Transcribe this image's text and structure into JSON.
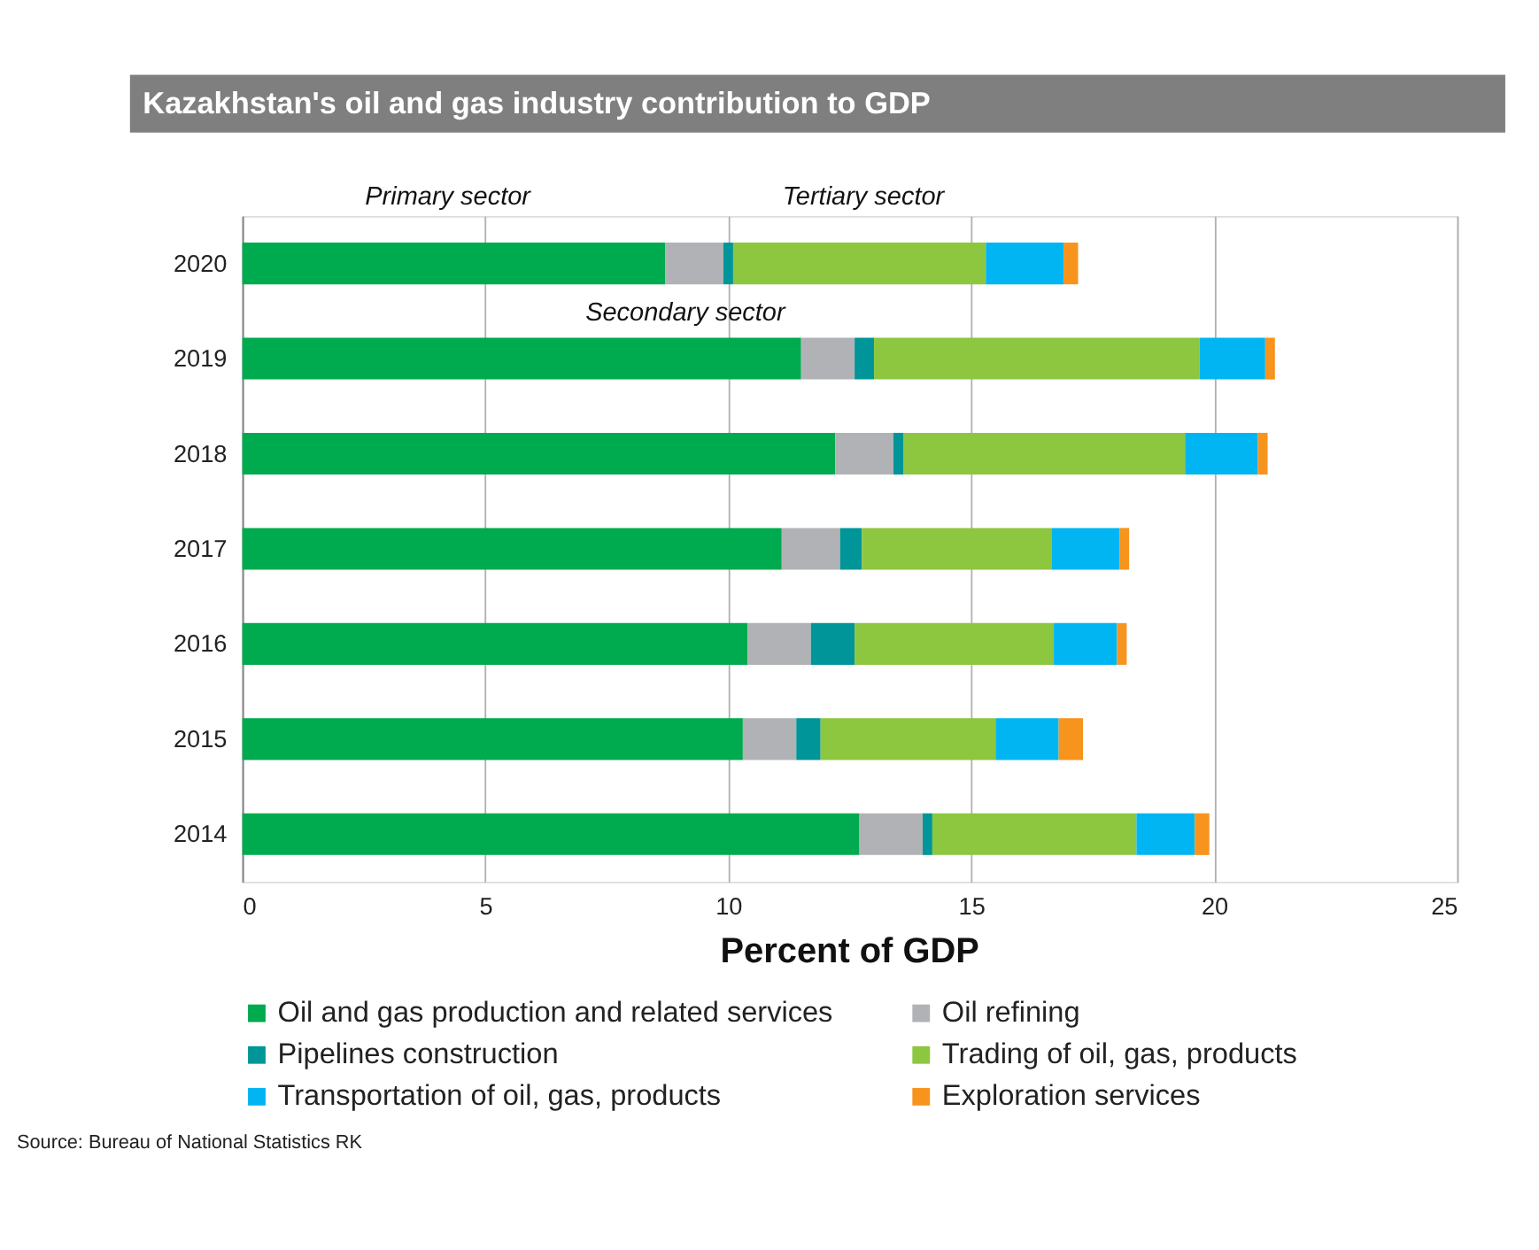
{
  "chart_data": {
    "type": "bar",
    "orientation": "horizontal",
    "stacked": true,
    "title": "Kazakhstan's oil and gas industry contribution to GDP",
    "xlabel": "Percent of GDP",
    "categories": [
      "2020",
      "2019",
      "2018",
      "2017",
      "2016",
      "2015",
      "2014"
    ],
    "series": [
      {
        "name": "Oil and gas production and related services",
        "color": "#00aa4e",
        "values": [
          8.7,
          11.5,
          12.2,
          11.1,
          10.4,
          10.3,
          12.7
        ]
      },
      {
        "name": "Oil refining",
        "color": "#b1b2b5",
        "values": [
          1.2,
          1.1,
          1.2,
          1.2,
          1.3,
          1.1,
          1.3
        ]
      },
      {
        "name": "Pipelines construction",
        "color": "#009599",
        "values": [
          0.2,
          0.4,
          0.2,
          0.45,
          0.9,
          0.5,
          0.2
        ]
      },
      {
        "name": "Trading of oil, gas, products",
        "color": "#8dc63f",
        "values": [
          5.2,
          6.7,
          5.8,
          3.9,
          4.1,
          3.6,
          4.2
        ]
      },
      {
        "name": "Transportation of oil, gas, products",
        "color": "#00b5f1",
        "values": [
          1.6,
          1.35,
          1.5,
          1.4,
          1.3,
          1.3,
          1.2
        ]
      },
      {
        "name": "Exploration services",
        "color": "#f7941d",
        "values": [
          0.3,
          0.2,
          0.2,
          0.2,
          0.2,
          0.5,
          0.3
        ]
      }
    ],
    "xlim": [
      0,
      25
    ],
    "xticks": [
      0,
      5,
      10,
      15,
      20,
      25
    ],
    "grid": "x",
    "legend": "bottom",
    "annotations": [
      "Primary sector",
      "Secondary sector",
      "Tertiary sector",
      "Source: Bureau of National Statistics RK"
    ]
  }
}
